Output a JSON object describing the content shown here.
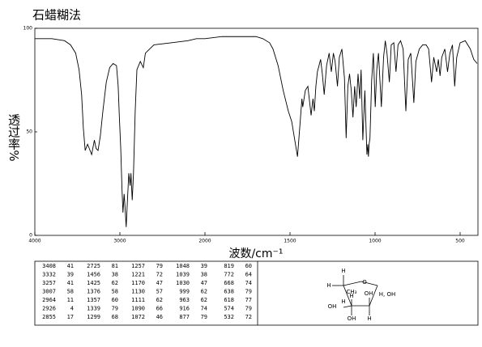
{
  "chart_data": {
    "type": "line",
    "title": "石蜡糊法",
    "xlabel": "波数/cm⁻¹",
    "ylabel": "透过率%",
    "xlim": [
      4000,
      400
    ],
    "xticks": [
      4000,
      3000,
      2000,
      1500,
      1000,
      500
    ],
    "ylim": [
      0,
      100
    ],
    "yticks": [
      0,
      50,
      100
    ],
    "color": "#000000",
    "x": [
      4000,
      3800,
      3650,
      3580,
      3520,
      3480,
      3450,
      3430,
      3408,
      3380,
      3360,
      3332,
      3300,
      3280,
      3257,
      3230,
      3200,
      3160,
      3120,
      3080,
      3040,
      3020,
      3007,
      2990,
      2975,
      2964,
      2950,
      2940,
      2926,
      2910,
      2895,
      2880,
      2870,
      2855,
      2840,
      2820,
      2800,
      2760,
      2725,
      2700,
      2600,
      2400,
      2200,
      2100,
      2000,
      1900,
      1800,
      1700,
      1660,
      1620,
      1600,
      1570,
      1540,
      1510,
      1490,
      1470,
      1456,
      1440,
      1430,
      1425,
      1410,
      1395,
      1376,
      1365,
      1357,
      1348,
      1339,
      1320,
      1310,
      1299,
      1285,
      1270,
      1257,
      1245,
      1235,
      1221,
      1210,
      1195,
      1180,
      1170,
      1160,
      1150,
      1140,
      1130,
      1120,
      1111,
      1100,
      1090,
      1082,
      1072,
      1060,
      1048,
      1043,
      1039,
      1035,
      1030,
      1020,
      1010,
      999,
      990,
      980,
      963,
      950,
      940,
      930,
      916,
      905,
      890,
      877,
      865,
      850,
      835,
      819,
      805,
      790,
      772,
      760,
      740,
      720,
      700,
      685,
      668,
      655,
      638,
      628,
      618,
      608,
      590,
      574,
      560,
      545,
      532,
      520,
      500,
      470,
      440,
      420,
      400
    ],
    "values": [
      95,
      95,
      94,
      92,
      88,
      80,
      68,
      52,
      41,
      44,
      42,
      39,
      46,
      42,
      41,
      48,
      60,
      74,
      81,
      83,
      82,
      72,
      58,
      42,
      22,
      11,
      20,
      14,
      4,
      18,
      30,
      24,
      30,
      17,
      30,
      60,
      80,
      84,
      81,
      88,
      92,
      93,
      94,
      95,
      95,
      96,
      96,
      96,
      95,
      93,
      90,
      82,
      70,
      60,
      55,
      45,
      38,
      55,
      66,
      62,
      70,
      72,
      58,
      66,
      60,
      72,
      79,
      85,
      78,
      68,
      82,
      88,
      79,
      88,
      84,
      72,
      86,
      90,
      76,
      47,
      72,
      78,
      70,
      57,
      72,
      62,
      78,
      66,
      80,
      46,
      70,
      39,
      44,
      38,
      44,
      47,
      75,
      88,
      62,
      80,
      88,
      62,
      86,
      94,
      88,
      74,
      92,
      93,
      79,
      92,
      94,
      90,
      60,
      85,
      88,
      64,
      84,
      90,
      92,
      92,
      90,
      74,
      86,
      79,
      85,
      77,
      86,
      90,
      79,
      88,
      92,
      72,
      86,
      93,
      94,
      90,
      85,
      83
    ]
  },
  "table": {
    "columns": [
      [
        [
          3408,
          41
        ],
        [
          3332,
          39
        ],
        [
          3257,
          41
        ],
        [
          3007,
          58
        ],
        [
          2964,
          11
        ],
        [
          2926,
          4
        ],
        [
          2855,
          17
        ]
      ],
      [
        [
          2725,
          81
        ],
        [
          1456,
          38
        ],
        [
          1425,
          62
        ],
        [
          1376,
          58
        ],
        [
          1357,
          60
        ],
        [
          1339,
          79
        ],
        [
          1299,
          68
        ]
      ],
      [
        [
          1257,
          79
        ],
        [
          1221,
          72
        ],
        [
          1170,
          47
        ],
        [
          1130,
          57
        ],
        [
          1111,
          62
        ],
        [
          1090,
          66
        ],
        [
          1072,
          46
        ]
      ],
      [
        [
          1048,
          39
        ],
        [
          1039,
          38
        ],
        [
          1030,
          47
        ],
        [
          999,
          62
        ],
        [
          963,
          62
        ],
        [
          916,
          74
        ],
        [
          877,
          79
        ]
      ],
      [
        [
          819,
          60
        ],
        [
          772,
          64
        ],
        [
          668,
          74
        ],
        [
          638,
          79
        ],
        [
          618,
          77
        ],
        [
          574,
          79
        ],
        [
          532,
          72
        ]
      ]
    ]
  },
  "structure": {
    "labels": [
      "H",
      "H",
      "CH₃",
      "O",
      "OH",
      "H, OH",
      "OH",
      "H",
      "H",
      "OH",
      "H"
    ]
  }
}
